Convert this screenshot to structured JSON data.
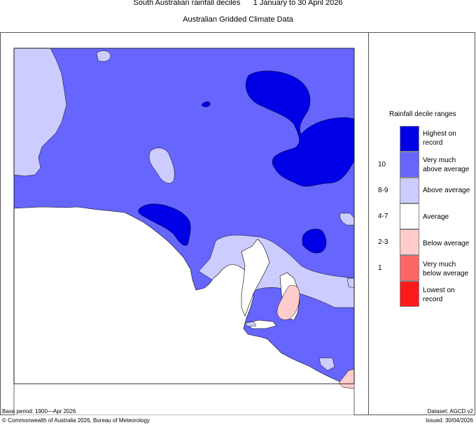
{
  "header": {
    "title_line": "South Australian rainfall deciles      1 January to 30 April 2026",
    "subtitle": "Australian Gridded Climate Data"
  },
  "legend": {
    "title": "Rainfall decile ranges",
    "items": [
      {
        "range": "",
        "label": "Highest on record",
        "color": "#0000e6"
      },
      {
        "range": "10",
        "label": "Very much above average",
        "color": "#6666ff"
      },
      {
        "range": "8-9",
        "label": "Above average",
        "color": "#ccccff"
      },
      {
        "range": "4-7",
        "label": "Average",
        "color": "#ffffff"
      },
      {
        "range": "2-3",
        "label": "Below average",
        "color": "#ffcccc"
      },
      {
        "range": "1",
        "label": "Very much below average",
        "color": "#ff6666"
      },
      {
        "range": "",
        "label": "Lowest on record",
        "color": "#ff1a1a"
      }
    ]
  },
  "footer": {
    "base_period": "Base period: 1900—Apr 2026",
    "dataset": "Dataset: AGCD v2",
    "copyright": "© Commonwealth of Australia 2026, Bureau of Meteorology",
    "issued": "Issued: 30/04/2026"
  },
  "colors": {
    "highest": "#0000e6",
    "very_much_above": "#6666ff",
    "above": "#ccccff",
    "average": "#ffffff",
    "below": "#ffcccc",
    "very_much_below": "#ff6666",
    "lowest": "#ff1a1a"
  }
}
